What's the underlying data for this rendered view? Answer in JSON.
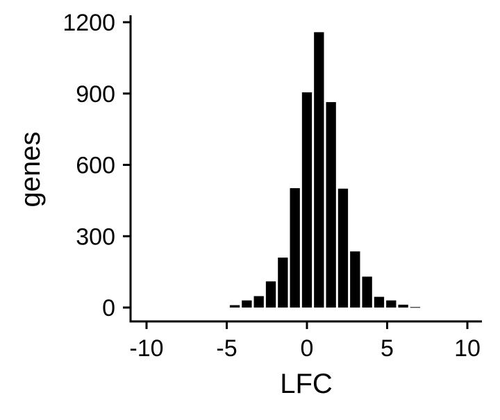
{
  "chart_data": {
    "type": "bar",
    "title": "",
    "xlabel": "LFC",
    "ylabel": "genes",
    "xlim": [
      -11,
      11
    ],
    "ylim": [
      -60,
      1240
    ],
    "grid": false,
    "legend": null,
    "xticks": [
      -10,
      -5,
      0,
      5,
      10
    ],
    "xtick_labels": [
      "-10",
      "-5",
      "0",
      "5",
      "10"
    ],
    "yticks": [
      0,
      300,
      600,
      900,
      1200
    ],
    "ytick_labels": [
      "0",
      "300",
      "600",
      "900",
      "1200"
    ],
    "bin_width": 0.75,
    "bars": [
      {
        "x": -4.5,
        "y": 10
      },
      {
        "x": -3.75,
        "y": 30
      },
      {
        "x": -3.0,
        "y": 48
      },
      {
        "x": -2.25,
        "y": 110
      },
      {
        "x": -1.5,
        "y": 210
      },
      {
        "x": -0.75,
        "y": 502
      },
      {
        "x": 0.0,
        "y": 905
      },
      {
        "x": 0.75,
        "y": 1158
      },
      {
        "x": 1.5,
        "y": 864
      },
      {
        "x": 2.25,
        "y": 500
      },
      {
        "x": 3.0,
        "y": 236
      },
      {
        "x": 3.75,
        "y": 130
      },
      {
        "x": 4.5,
        "y": 45
      },
      {
        "x": 5.25,
        "y": 30
      },
      {
        "x": 6.0,
        "y": 12
      },
      {
        "x": 6.75,
        "y": 2
      }
    ],
    "bar_color": "#000000"
  }
}
